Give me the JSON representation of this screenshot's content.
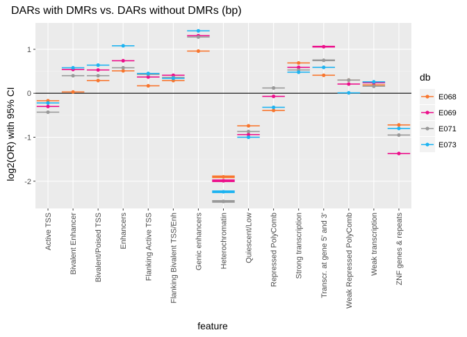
{
  "chart_data": {
    "type": "errorbar-dot",
    "title": "DARs with DMRs vs. DARs without DMRs (bp)",
    "xlabel": "feature",
    "ylabel": "log2(OR) with 95% CI",
    "ylim": [
      -2.62,
      1.6
    ],
    "yticks": [
      -2,
      -1,
      0,
      1
    ],
    "grid": true,
    "hline": 0,
    "legend": {
      "title": "db",
      "position": "right"
    },
    "categories": [
      "Active TSS",
      "Bivalent Enhancer",
      "Bivalent/Poised TSS",
      "Enhancers",
      "Flanking Active TSS",
      "Flanking Bivalent TSS/Enh",
      "Genic enhancers",
      "Heterochromatin",
      "Quiescent/Low",
      "Repressed PolyComb",
      "Strong transcription",
      "Transcr. at gene 5' and 3'",
      "Weak Repressed PolyComb",
      "Weak transcription",
      "ZNF genes & repeats"
    ],
    "series": [
      {
        "name": "E068",
        "color": "#F8762E",
        "values": [
          -0.17,
          0.03,
          0.29,
          0.51,
          0.17,
          0.29,
          0.96,
          -1.9,
          -0.74,
          -0.39,
          0.69,
          0.41,
          0.3,
          0.19,
          -0.72
        ],
        "ci": [
          [
            -0.18,
            -0.16
          ],
          [
            0.02,
            0.04
          ],
          [
            0.28,
            0.3
          ],
          [
            0.5,
            0.52
          ],
          [
            0.16,
            0.18
          ],
          [
            0.28,
            0.3
          ],
          [
            0.95,
            0.97
          ],
          [
            -1.93,
            -1.87
          ],
          [
            -0.75,
            -0.73
          ],
          [
            -0.4,
            -0.38
          ],
          [
            0.68,
            0.7
          ],
          [
            0.4,
            0.42
          ],
          [
            0.29,
            0.31
          ],
          [
            0.18,
            0.2
          ],
          [
            -0.73,
            -0.71
          ]
        ]
      },
      {
        "name": "E069",
        "color": "#EC0F8B",
        "values": [
          -0.3,
          0.54,
          0.53,
          0.74,
          0.37,
          0.41,
          1.31,
          -1.99,
          -0.94,
          -0.07,
          0.59,
          1.06,
          0.21,
          0.24,
          -1.37
        ],
        "ci": [
          [
            -0.31,
            -0.29
          ],
          [
            0.53,
            0.55
          ],
          [
            0.52,
            0.54
          ],
          [
            0.73,
            0.75
          ],
          [
            0.36,
            0.38
          ],
          [
            0.4,
            0.42
          ],
          [
            1.3,
            1.32
          ],
          [
            -2.02,
            -1.96
          ],
          [
            -0.95,
            -0.93
          ],
          [
            -0.08,
            -0.06
          ],
          [
            0.58,
            0.6
          ],
          [
            1.04,
            1.08
          ],
          [
            0.2,
            0.22
          ],
          [
            0.23,
            0.25
          ],
          [
            -1.38,
            -1.36
          ]
        ]
      },
      {
        "name": "E071",
        "color": "#999999",
        "values": [
          -0.43,
          0.4,
          0.4,
          0.58,
          0.43,
          0.36,
          1.28,
          -2.46,
          -0.87,
          0.12,
          0.53,
          0.75,
          0.3,
          0.16,
          -0.95
        ],
        "ci": [
          [
            -0.44,
            -0.42
          ],
          [
            0.39,
            0.41
          ],
          [
            0.39,
            0.41
          ],
          [
            0.57,
            0.59
          ],
          [
            0.42,
            0.44
          ],
          [
            0.35,
            0.37
          ],
          [
            1.27,
            1.29
          ],
          [
            -2.49,
            -2.43
          ],
          [
            -0.88,
            -0.86
          ],
          [
            0.11,
            0.13
          ],
          [
            0.52,
            0.54
          ],
          [
            0.73,
            0.77
          ],
          [
            0.29,
            0.31
          ],
          [
            0.15,
            0.17
          ],
          [
            -0.96,
            -0.94
          ]
        ]
      },
      {
        "name": "E073",
        "color": "#1DB3F1",
        "values": [
          -0.22,
          0.58,
          0.64,
          1.08,
          0.45,
          0.34,
          1.42,
          -2.24,
          -1.0,
          -0.32,
          0.48,
          0.59,
          0.01,
          0.26,
          -0.8
        ],
        "ci": [
          [
            -0.23,
            -0.21
          ],
          [
            0.57,
            0.59
          ],
          [
            0.63,
            0.65
          ],
          [
            1.07,
            1.09
          ],
          [
            0.44,
            0.46
          ],
          [
            0.33,
            0.35
          ],
          [
            1.41,
            1.43
          ],
          [
            -2.27,
            -2.21
          ],
          [
            -1.01,
            -0.99
          ],
          [
            -0.33,
            -0.31
          ],
          [
            0.47,
            0.49
          ],
          [
            0.58,
            0.6
          ],
          [
            0.0,
            0.02
          ],
          [
            0.25,
            0.27
          ],
          [
            -0.81,
            -0.79
          ]
        ]
      }
    ]
  }
}
